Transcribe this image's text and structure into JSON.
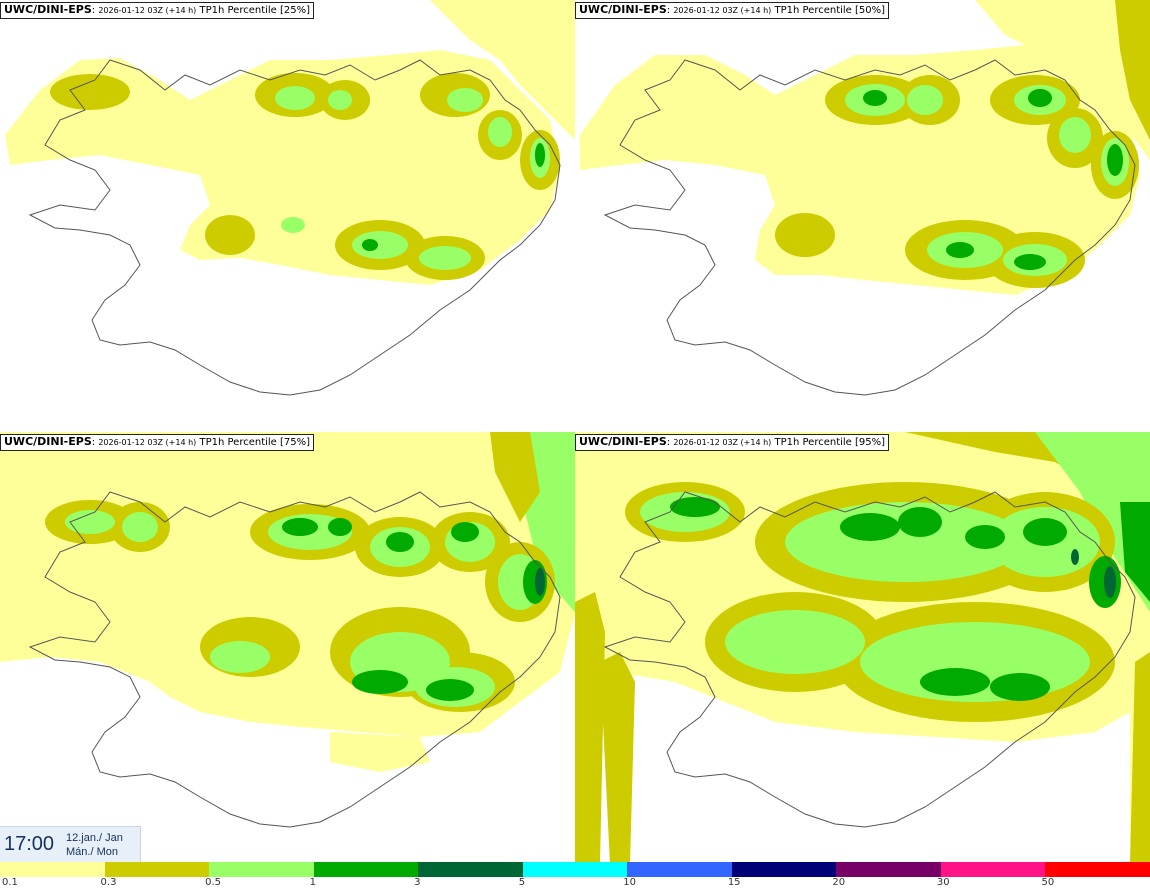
{
  "panels": [
    {
      "model": "UWC/DINI-EPS",
      "run": "2026-01-12 03Z (+14 h)",
      "field": "TP1h Percentile [25%]",
      "percentile": 25
    },
    {
      "model": "UWC/DINI-EPS",
      "run": "2026-01-12 03Z (+14 h)",
      "field": "TP1h Percentile [50%]",
      "percentile": 50
    },
    {
      "model": "UWC/DINI-EPS",
      "run": "2026-01-12 03Z (+14 h)",
      "field": "TP1h Percentile [75%]",
      "percentile": 75
    },
    {
      "model": "UWC/DINI-EPS",
      "run": "2026-01-12 03Z (+14 h)",
      "field": "TP1h Percentile [95%]",
      "percentile": 95
    }
  ],
  "valid_time": {
    "time": "17:00",
    "date_line1": "12.jan./ Jan",
    "date_line2": "Mán./ Mon"
  },
  "legend": {
    "colors": [
      "#ffff99",
      "#cccc00",
      "#99ff66",
      "#00aa00",
      "#006633",
      "#00ffff",
      "#3366ff",
      "#000077",
      "#770066",
      "#ff1188",
      "#ff0000"
    ],
    "labels": [
      "0.1",
      "0.3",
      "0.5",
      "1",
      "3",
      "5",
      "10",
      "15",
      "20",
      "30",
      "50"
    ]
  }
}
